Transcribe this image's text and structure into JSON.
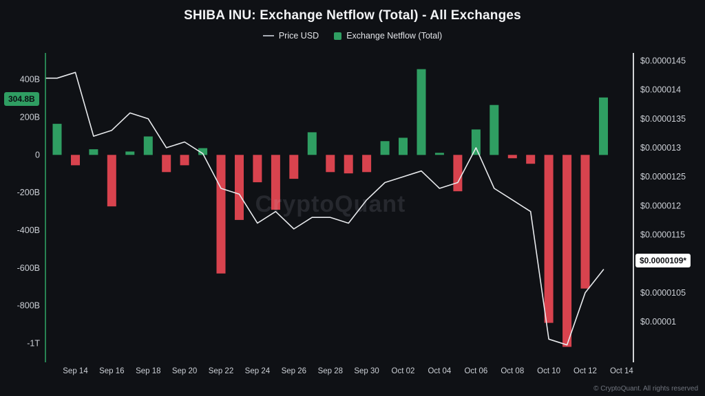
{
  "header": {
    "title": "SHIBA INU: Exchange Netflow (Total) - All Exchanges"
  },
  "legend": {
    "price_label": "Price USD",
    "netflow_label": "Exchange Netflow (Total)"
  },
  "badges": {
    "netflow_value": "304.8B",
    "price_value": "$0.0000109*"
  },
  "watermark": {
    "text": "CryptoQuant"
  },
  "footer": {
    "copyright": "© CryptoQuant. All rights reserved"
  },
  "colors": {
    "background": "#0f1115",
    "green": "#2f9e62",
    "red": "#d8434e",
    "price_line": "#e8eaed",
    "axis_text": "#ccd0d6"
  },
  "chart_data": {
    "type": "bar",
    "title": "SHIBA INU: Exchange Netflow (Total) - All Exchanges",
    "grid": false,
    "legend_position": "top",
    "categories": [
      "Sep 13",
      "Sep 14",
      "Sep 15",
      "Sep 16",
      "Sep 17",
      "Sep 18",
      "Sep 19",
      "Sep 20",
      "Sep 21",
      "Sep 22",
      "Sep 23",
      "Sep 24",
      "Sep 25",
      "Sep 26",
      "Sep 27",
      "Sep 28",
      "Sep 29",
      "Sep 30",
      "Oct 01",
      "Oct 02",
      "Oct 03",
      "Oct 04",
      "Oct 05",
      "Oct 06",
      "Oct 07",
      "Oct 08",
      "Oct 09",
      "Oct 10",
      "Oct 11",
      "Oct 12",
      "Oct 13"
    ],
    "series": [
      {
        "name": "Exchange Netflow (Total)",
        "type": "bar",
        "unit": "billions of SHIB",
        "values": [
          165,
          -55,
          30,
          -273,
          18,
          98,
          -91,
          -55,
          36,
          -629,
          -345,
          -145,
          -291,
          -127,
          120,
          -91,
          -98,
          -91,
          73,
          91,
          455,
          11,
          -193,
          135,
          265,
          -18,
          -47,
          -891,
          -1018,
          -709,
          304.8
        ]
      },
      {
        "name": "Price USD",
        "type": "line",
        "unit": "USD",
        "values": [
          1.42e-05,
          1.43e-05,
          1.32e-05,
          1.33e-05,
          1.36e-05,
          1.35e-05,
          1.3e-05,
          1.31e-05,
          1.29e-05,
          1.23e-05,
          1.22e-05,
          1.17e-05,
          1.19e-05,
          1.16e-05,
          1.18e-05,
          1.18e-05,
          1.17e-05,
          1.21e-05,
          1.24e-05,
          1.25e-05,
          1.26e-05,
          1.23e-05,
          1.24e-05,
          1.3e-05,
          1.23e-05,
          1.21e-05,
          1.19e-05,
          9.7e-06,
          9.6e-06,
          1.05e-05,
          1.09e-05
        ]
      }
    ],
    "left_axis": {
      "title": "Exchange Netflow (Total)",
      "min": -1100,
      "max": 530,
      "ticks": [
        {
          "v": 400,
          "label": "400B"
        },
        {
          "v": 200,
          "label": "200B"
        },
        {
          "v": 0,
          "label": "0"
        },
        {
          "v": -200,
          "label": "-200B"
        },
        {
          "v": -400,
          "label": "-400B"
        },
        {
          "v": -600,
          "label": "-600B"
        },
        {
          "v": -800,
          "label": "-800B"
        },
        {
          "v": -1000,
          "label": "-1T"
        }
      ]
    },
    "right_axis": {
      "title": "Price USD",
      "min": 9.3e-06,
      "max": 1.46e-05,
      "ticks": [
        {
          "v": 1.45e-05,
          "label": "$0.0000145"
        },
        {
          "v": 1.4e-05,
          "label": "$0.000014"
        },
        {
          "v": 1.35e-05,
          "label": "$0.0000135"
        },
        {
          "v": 1.3e-05,
          "label": "$0.000013"
        },
        {
          "v": 1.25e-05,
          "label": "$0.0000125"
        },
        {
          "v": 1.2e-05,
          "label": "$0.000012"
        },
        {
          "v": 1.15e-05,
          "label": "$0.0000115"
        },
        {
          "v": 1.05e-05,
          "label": "$0.0000105"
        },
        {
          "v": 1e-05,
          "label": "$0.00001"
        }
      ]
    },
    "x_axis": {
      "ticks": [
        {
          "i": 1,
          "label": "Sep 14"
        },
        {
          "i": 3,
          "label": "Sep 16"
        },
        {
          "i": 5,
          "label": "Sep 18"
        },
        {
          "i": 7,
          "label": "Sep 20"
        },
        {
          "i": 9,
          "label": "Sep 22"
        },
        {
          "i": 11,
          "label": "Sep 24"
        },
        {
          "i": 13,
          "label": "Sep 26"
        },
        {
          "i": 15,
          "label": "Sep 28"
        },
        {
          "i": 17,
          "label": "Sep 30"
        },
        {
          "i": 19,
          "label": "Oct 02"
        },
        {
          "i": 21,
          "label": "Oct 04"
        },
        {
          "i": 23,
          "label": "Oct 06"
        },
        {
          "i": 25,
          "label": "Oct 08"
        },
        {
          "i": 27,
          "label": "Oct 10"
        },
        {
          "i": 29,
          "label": "Oct 12"
        },
        {
          "i": 31,
          "label": "Oct 14"
        }
      ]
    }
  }
}
